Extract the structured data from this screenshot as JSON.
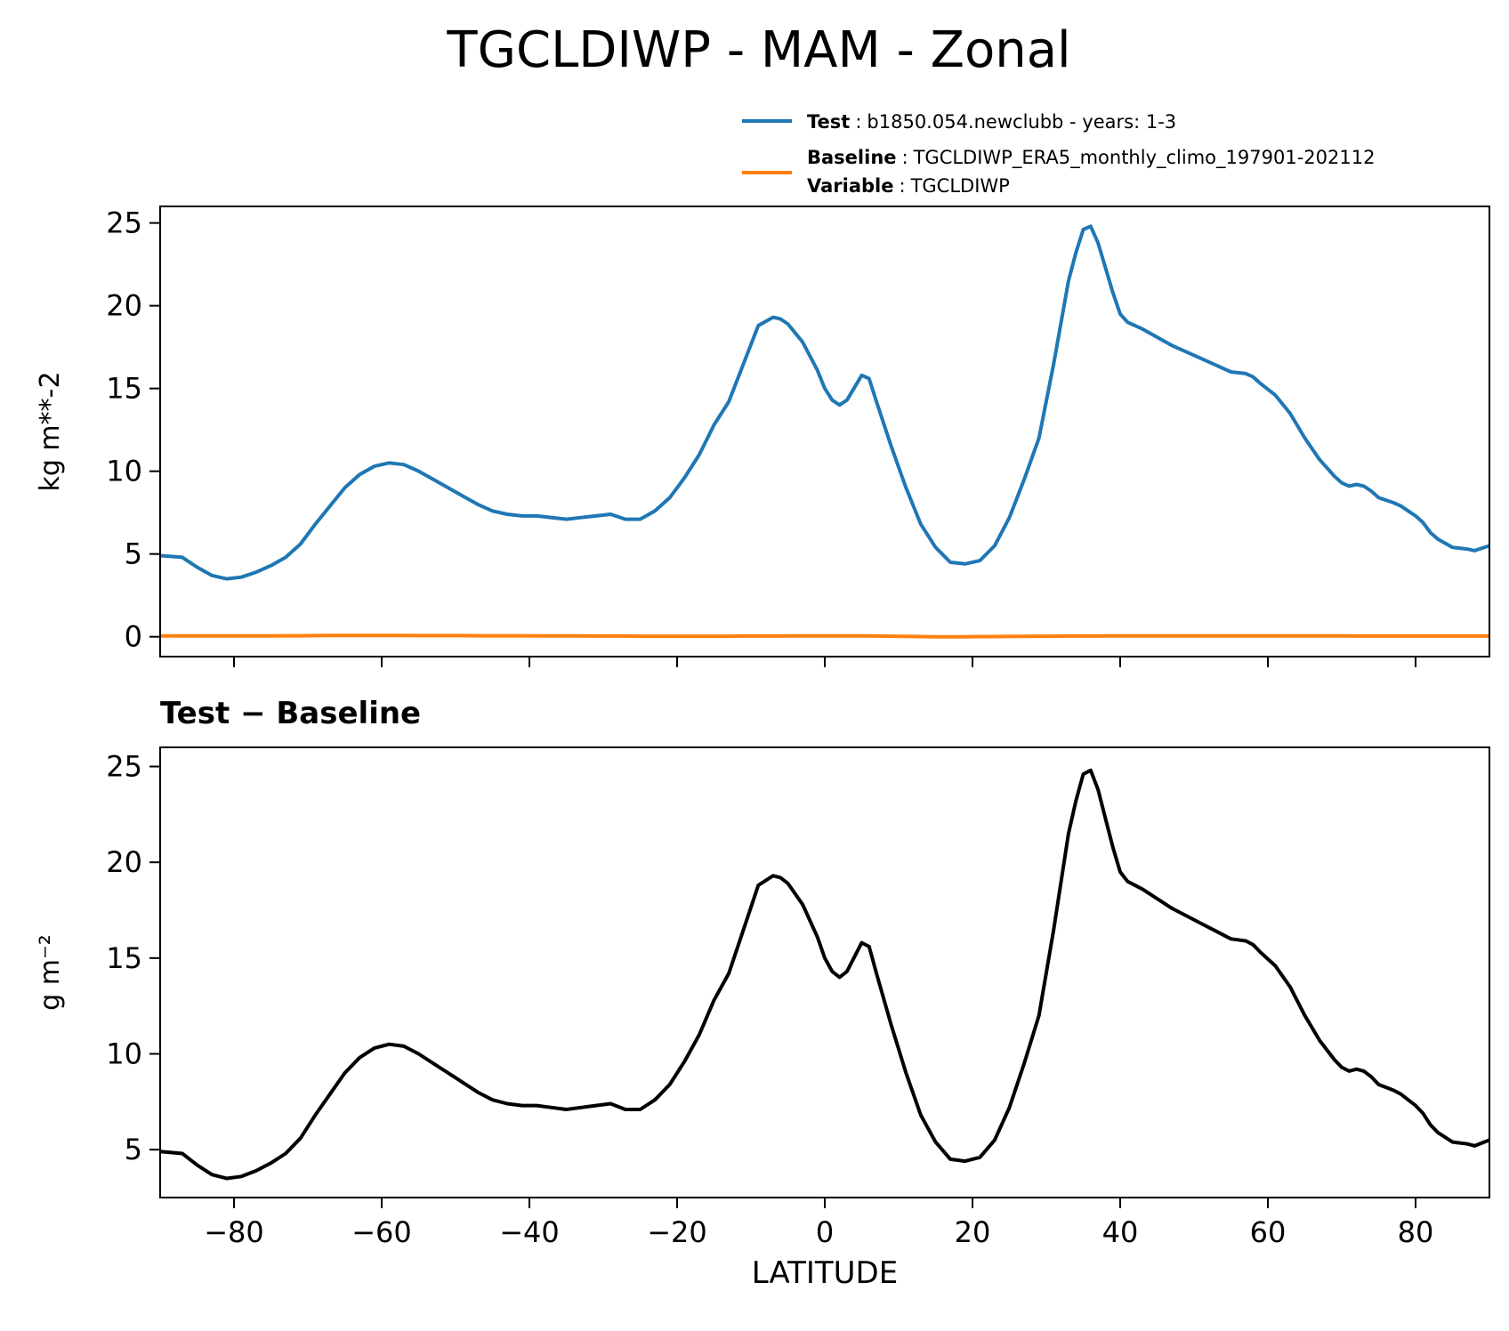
{
  "chart_data": [
    {
      "type": "line",
      "title": "TGCLDIWP - MAM - Zonal",
      "xlabel": "",
      "ylabel": "kg m**-2",
      "xlim": [
        -90,
        90
      ],
      "ylim": [
        -1.2,
        26
      ],
      "yticks": [
        0,
        5,
        10,
        15,
        20,
        25
      ],
      "legend": {
        "placement": "top-right",
        "entries": [
          {
            "bold": "Test",
            "sep": ":",
            "text": "b1850.054.newclubb - years: 1-3",
            "color": "#1f77b4"
          },
          {
            "bold": "Baseline",
            "sep": ":",
            "text": "TGCLDIWP_ERA5_monthly_climo_197901-202112",
            "color": "#ff7f0e"
          },
          {
            "bold": "Variable",
            "sep": ":",
            "text": "TGCLDIWP",
            "color": ""
          }
        ]
      },
      "x": [
        -90,
        -87,
        -85,
        -83,
        -81,
        -79,
        -77,
        -75,
        -73,
        -71,
        -69,
        -67,
        -65,
        -63,
        -61,
        -59,
        -57,
        -55,
        -53,
        -51,
        -49,
        -47,
        -45,
        -43,
        -41,
        -39,
        -37,
        -35,
        -33,
        -31,
        -29,
        -27,
        -25,
        -23,
        -21,
        -19,
        -17,
        -15,
        -13,
        -11,
        -9,
        -7,
        -6,
        -5,
        -3,
        -1,
        0,
        1,
        2,
        3,
        5,
        6,
        7,
        9,
        11,
        13,
        15,
        17,
        19,
        21,
        23,
        25,
        27,
        29,
        31,
        33,
        34,
        35,
        36,
        37,
        38,
        39,
        40,
        41,
        43,
        45,
        47,
        49,
        51,
        53,
        55,
        57,
        58,
        59,
        61,
        63,
        65,
        67,
        69,
        70,
        71,
        72,
        73,
        74,
        75,
        77,
        78,
        79,
        80,
        81,
        82,
        83,
        85,
        87,
        88,
        90
      ],
      "series": [
        {
          "name": "Test",
          "color": "#1f77b4",
          "values": [
            4.9,
            4.8,
            4.2,
            3.7,
            3.5,
            3.6,
            3.9,
            4.3,
            4.8,
            5.6,
            6.8,
            7.9,
            9.0,
            9.8,
            10.3,
            10.5,
            10.4,
            10.0,
            9.5,
            9.0,
            8.5,
            8.0,
            7.6,
            7.4,
            7.3,
            7.3,
            7.2,
            7.1,
            7.2,
            7.3,
            7.4,
            7.1,
            7.1,
            7.6,
            8.4,
            9.6,
            11.0,
            12.8,
            14.2,
            16.5,
            18.8,
            19.3,
            19.2,
            18.9,
            17.8,
            16.1,
            15.0,
            14.3,
            14.0,
            14.3,
            15.8,
            15.6,
            14.2,
            11.5,
            9.0,
            6.8,
            5.4,
            4.5,
            4.4,
            4.6,
            5.5,
            7.2,
            9.5,
            12.0,
            16.5,
            21.5,
            23.2,
            24.6,
            24.8,
            23.8,
            22.3,
            20.8,
            19.5,
            19.0,
            18.6,
            18.1,
            17.6,
            17.2,
            16.8,
            16.4,
            16.0,
            15.9,
            15.7,
            15.3,
            14.6,
            13.5,
            12.0,
            10.7,
            9.7,
            9.3,
            9.1,
            9.2,
            9.1,
            8.8,
            8.4,
            8.1,
            7.9,
            7.6,
            7.3,
            6.9,
            6.3,
            5.9,
            5.4,
            5.3,
            5.2,
            5.5
          ]
        },
        {
          "name": "Baseline",
          "color": "#ff7f0e",
          "values": [
            0.05,
            0.05,
            0.05,
            0.05,
            0.05,
            0.05,
            0.05,
            0.05,
            0.06,
            0.06,
            0.07,
            0.08,
            0.08,
            0.08,
            0.08,
            0.08,
            0.08,
            0.07,
            0.07,
            0.07,
            0.07,
            0.06,
            0.06,
            0.06,
            0.06,
            0.05,
            0.05,
            0.05,
            0.05,
            0.04,
            0.04,
            0.04,
            0.03,
            0.03,
            0.03,
            0.03,
            0.03,
            0.03,
            0.03,
            0.04,
            0.04,
            0.04,
            0.04,
            0.05,
            0.05,
            0.05,
            0.05,
            0.05,
            0.05,
            0.05,
            0.05,
            0.05,
            0.04,
            0.03,
            0.02,
            0.01,
            0.0,
            0.0,
            0.0,
            0.01,
            0.01,
            0.02,
            0.02,
            0.03,
            0.03,
            0.04,
            0.04,
            0.04,
            0.04,
            0.04,
            0.05,
            0.05,
            0.05,
            0.05,
            0.05,
            0.05,
            0.05,
            0.05,
            0.05,
            0.05,
            0.05,
            0.05,
            0.05,
            0.05,
            0.05,
            0.05,
            0.05,
            0.05,
            0.05,
            0.05,
            0.05,
            0.04,
            0.04,
            0.04,
            0.04,
            0.04,
            0.04,
            0.04,
            0.04,
            0.04,
            0.04,
            0.04,
            0.04,
            0.04,
            0.04,
            0.04
          ]
        }
      ]
    },
    {
      "type": "line",
      "title": "Test − Baseline",
      "xlabel": "LATITUDE",
      "ylabel": "g m⁻²",
      "xlim": [
        -90,
        90
      ],
      "ylim": [
        2.5,
        26
      ],
      "yticks": [
        5,
        10,
        15,
        20,
        25
      ],
      "xticks": [
        -80,
        -60,
        -40,
        -20,
        0,
        20,
        40,
        60,
        80
      ],
      "xtick_labels": [
        "−80",
        "−60",
        "−40",
        "−20",
        "0",
        "20",
        "40",
        "60",
        "80"
      ],
      "series": [
        {
          "name": "",
          "color": "#000000",
          "values": [
            4.9,
            4.8,
            4.2,
            3.7,
            3.5,
            3.6,
            3.9,
            4.3,
            4.8,
            5.6,
            6.8,
            7.9,
            9.0,
            9.8,
            10.3,
            10.5,
            10.4,
            10.0,
            9.5,
            9.0,
            8.5,
            8.0,
            7.6,
            7.4,
            7.3,
            7.3,
            7.2,
            7.1,
            7.2,
            7.3,
            7.4,
            7.1,
            7.1,
            7.6,
            8.4,
            9.6,
            11.0,
            12.8,
            14.2,
            16.5,
            18.8,
            19.3,
            19.2,
            18.9,
            17.8,
            16.1,
            15.0,
            14.3,
            14.0,
            14.3,
            15.8,
            15.6,
            14.2,
            11.5,
            9.0,
            6.8,
            5.4,
            4.5,
            4.4,
            4.6,
            5.5,
            7.2,
            9.5,
            12.0,
            16.5,
            21.5,
            23.2,
            24.6,
            24.8,
            23.8,
            22.3,
            20.8,
            19.5,
            19.0,
            18.6,
            18.1,
            17.6,
            17.2,
            16.8,
            16.4,
            16.0,
            15.9,
            15.7,
            15.3,
            14.6,
            13.5,
            12.0,
            10.7,
            9.7,
            9.3,
            9.1,
            9.2,
            9.1,
            8.8,
            8.4,
            8.1,
            7.9,
            7.6,
            7.3,
            6.9,
            6.3,
            5.9,
            5.4,
            5.3,
            5.2,
            5.5
          ]
        }
      ]
    }
  ]
}
